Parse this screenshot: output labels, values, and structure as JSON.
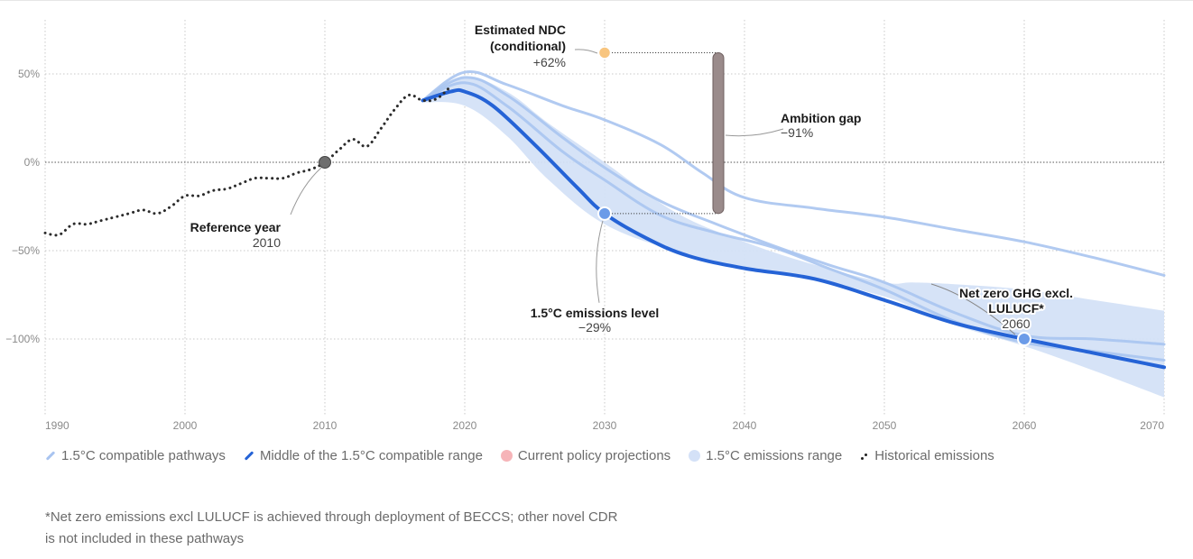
{
  "chart_data": {
    "type": "line",
    "title": "",
    "xlabel": "",
    "ylabel": "",
    "xlim": [
      1990,
      2070
    ],
    "ylim": [
      -140,
      80
    ],
    "x_ticks": [
      1990,
      2000,
      2010,
      2020,
      2030,
      2040,
      2050,
      2060,
      2070
    ],
    "x_tick_labels": [
      "1990",
      "2000",
      "2010",
      "2020",
      "2030",
      "2040",
      "2050",
      "2060",
      "2070"
    ],
    "y_ticks": [
      50,
      0,
      -50,
      -100
    ],
    "y_tick_labels": [
      "50%",
      "0%",
      "−50%",
      "−100%"
    ],
    "grid": true,
    "historical": {
      "name": "Historical emissions",
      "x": [
        1990,
        1991,
        1992,
        1993,
        1994,
        1995,
        1996,
        1997,
        1998,
        1999,
        2000,
        2001,
        2002,
        2003,
        2004,
        2005,
        2006,
        2007,
        2008,
        2009,
        2010,
        2011,
        2012,
        2013,
        2014,
        2015,
        2016,
        2017,
        2018,
        2019
      ],
      "y": [
        -40,
        -41,
        -35,
        -35,
        -33,
        -31,
        -29,
        -27,
        -29,
        -25,
        -19,
        -19,
        -16,
        -15,
        -12,
        -9,
        -9,
        -9,
        -6,
        -4,
        0,
        7,
        13,
        9,
        19,
        30,
        38,
        35,
        36,
        43
      ]
    },
    "range_band": {
      "name": "1.5°C emissions range",
      "x": [
        2017,
        2020,
        2023,
        2026,
        2030,
        2035,
        2040,
        2045,
        2050,
        2052,
        2055,
        2060,
        2065,
        2070
      ],
      "upper": [
        36,
        48,
        40,
        22,
        0,
        -28,
        -45,
        -58,
        -68,
        -68,
        -69,
        -72,
        -78,
        -84
      ],
      "lower": [
        34,
        32,
        15,
        -10,
        -35,
        -50,
        -60,
        -66,
        -76,
        -82,
        -92,
        -104,
        -118,
        -133
      ]
    },
    "middle_pathway": {
      "name": "Middle of the 1.5°C compatible range",
      "x": [
        2017,
        2019,
        2020,
        2022,
        2025,
        2028,
        2030,
        2033,
        2036,
        2040,
        2045,
        2050,
        2055,
        2060,
        2065,
        2070
      ],
      "y": [
        35,
        40,
        40,
        32,
        10,
        -14,
        -29,
        -43,
        -53,
        -60,
        -66,
        -78,
        -91,
        -100,
        -108,
        -116
      ]
    },
    "pathways": [
      {
        "name": "pathway-a",
        "x": [
          2017,
          2020,
          2023,
          2027,
          2030,
          2034,
          2037,
          2040,
          2045,
          2050,
          2055,
          2060,
          2065,
          2070
        ],
        "y": [
          35,
          51,
          44,
          32,
          24,
          10,
          -6,
          -20,
          -26,
          -31,
          -38,
          -45,
          -54,
          -64
        ]
      },
      {
        "name": "pathway-b",
        "x": [
          2017,
          2020,
          2023,
          2027,
          2030,
          2034,
          2038,
          2042,
          2046,
          2050,
          2055,
          2060,
          2065,
          2070
        ],
        "y": [
          35,
          48,
          38,
          14,
          -3,
          -22,
          -35,
          -47,
          -58,
          -68,
          -85,
          -98,
          -100,
          -103
        ]
      },
      {
        "name": "pathway-c",
        "x": [
          2017,
          2020,
          2023,
          2027,
          2030,
          2034,
          2038,
          2042,
          2046,
          2050,
          2055,
          2060,
          2065,
          2070
        ],
        "y": [
          35,
          45,
          32,
          6,
          -10,
          -30,
          -40,
          -48,
          -60,
          -72,
          -90,
          -102,
          -107,
          -112
        ]
      }
    ],
    "annotations": [
      {
        "id": "reference-year",
        "title": "Reference year",
        "value": "2010",
        "x": 2010,
        "y": 0
      },
      {
        "id": "ndc",
        "title_lines": [
          "Estimated NDC",
          "(conditional)"
        ],
        "value": "+62%",
        "x": 2030,
        "y": 62
      },
      {
        "id": "emissions-level",
        "title": "1.5°C emissions level",
        "value": "−29%",
        "x": 2030,
        "y": -29
      },
      {
        "id": "ambition-gap",
        "title": "Ambition gap",
        "value": "−91%",
        "x": 2038,
        "from": 62,
        "to": -29
      },
      {
        "id": "net-zero",
        "title_lines": [
          "Net zero GHG excl.",
          "LULUCF*"
        ],
        "value": "2060",
        "x": 2060,
        "y": -100
      }
    ],
    "colors": {
      "pathway": "#a9c4f0",
      "middle": "#2563d6",
      "band": "#d4e1f7",
      "historical": "#2b2b2b",
      "reference_dot": "#6e6e6e",
      "ndc_dot": "#f8c57f",
      "level_dot": "#6b9be8",
      "gap_bar": "#9a8b8b",
      "grid": "#c8c8c8"
    },
    "legend": [
      {
        "label": "1.5°C compatible pathways",
        "swatch": "line",
        "color": "#a9c4f0"
      },
      {
        "label": "Middle of the 1.5°C compatible range",
        "swatch": "line",
        "color": "#2563d6"
      },
      {
        "label": "Current policy projections",
        "swatch": "dot",
        "color": "#f6b4b8"
      },
      {
        "label": "1.5°C emissions range",
        "swatch": "dot",
        "color": "#d4e1f7"
      },
      {
        "label": "Historical emissions",
        "swatch": "hist",
        "color": "#222222"
      }
    ],
    "legend_position": "bottom-left"
  },
  "footnote": "*Net zero emissions excl LULUCF is achieved through deployment of BECCS; other novel CDR is not included in these pathways"
}
